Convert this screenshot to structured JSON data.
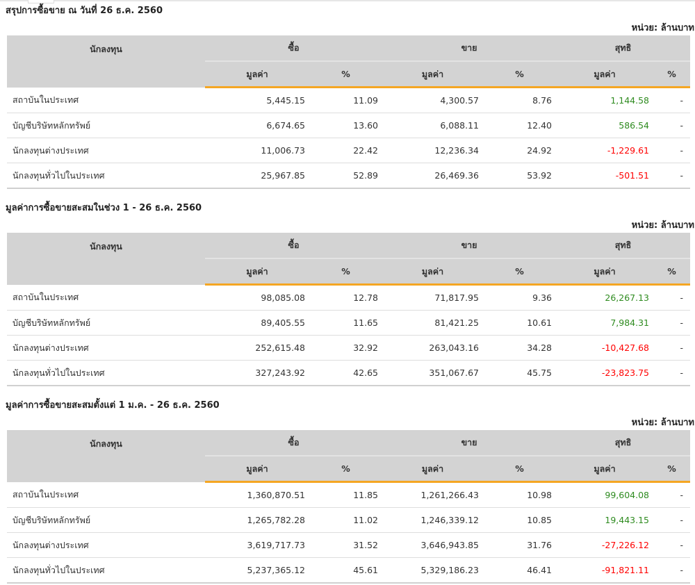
{
  "headers": {
    "investor": "นักลงทุน",
    "buy": "ซื้อ",
    "sell": "ขาย",
    "net": "สุทธิ",
    "value": "มูลค่า",
    "pct": "%"
  },
  "unit": "หน่วย: ล้านบาท",
  "colors": {
    "positive": "#2e8b1f",
    "negative": "#ff0000",
    "accent": "#f5a623"
  },
  "sections": [
    {
      "title": "สรุปการซื้อขาย ณ วันที่ 26 ธ.ค. 2560",
      "rows": [
        {
          "name": "สถาบันในประเทศ",
          "buy": "5,445.15",
          "buy_pct": "11.09",
          "sell": "4,300.57",
          "sell_pct": "8.76",
          "net": "1,144.58",
          "net_pct": "-"
        },
        {
          "name": "บัญชีบริษัทหลักทรัพย์",
          "buy": "6,674.65",
          "buy_pct": "13.60",
          "sell": "6,088.11",
          "sell_pct": "12.40",
          "net": "586.54",
          "net_pct": "-"
        },
        {
          "name": "นักลงทุนต่างประเทศ",
          "buy": "11,006.73",
          "buy_pct": "22.42",
          "sell": "12,236.34",
          "sell_pct": "24.92",
          "net": "-1,229.61",
          "net_pct": "-"
        },
        {
          "name": "นักลงทุนทั่วไปในประเทศ",
          "buy": "25,967.85",
          "buy_pct": "52.89",
          "sell": "26,469.36",
          "sell_pct": "53.92",
          "net": "-501.51",
          "net_pct": "-"
        }
      ]
    },
    {
      "title": "มูลค่าการซื้อขายสะสมในช่วง 1 - 26 ธ.ค. 2560",
      "rows": [
        {
          "name": "สถาบันในประเทศ",
          "buy": "98,085.08",
          "buy_pct": "12.78",
          "sell": "71,817.95",
          "sell_pct": "9.36",
          "net": "26,267.13",
          "net_pct": "-"
        },
        {
          "name": "บัญชีบริษัทหลักทรัพย์",
          "buy": "89,405.55",
          "buy_pct": "11.65",
          "sell": "81,421.25",
          "sell_pct": "10.61",
          "net": "7,984.31",
          "net_pct": "-"
        },
        {
          "name": "นักลงทุนต่างประเทศ",
          "buy": "252,615.48",
          "buy_pct": "32.92",
          "sell": "263,043.16",
          "sell_pct": "34.28",
          "net": "-10,427.68",
          "net_pct": "-"
        },
        {
          "name": "นักลงทุนทั่วไปในประเทศ",
          "buy": "327,243.92",
          "buy_pct": "42.65",
          "sell": "351,067.67",
          "sell_pct": "45.75",
          "net": "-23,823.75",
          "net_pct": "-"
        }
      ]
    },
    {
      "title": "มูลค่าการซื้อขายสะสมตั้งแต่ 1 ม.ค. - 26 ธ.ค. 2560",
      "rows": [
        {
          "name": "สถาบันในประเทศ",
          "buy": "1,360,870.51",
          "buy_pct": "11.85",
          "sell": "1,261,266.43",
          "sell_pct": "10.98",
          "net": "99,604.08",
          "net_pct": "-"
        },
        {
          "name": "บัญชีบริษัทหลักทรัพย์",
          "buy": "1,265,782.28",
          "buy_pct": "11.02",
          "sell": "1,246,339.12",
          "sell_pct": "10.85",
          "net": "19,443.15",
          "net_pct": "-"
        },
        {
          "name": "นักลงทุนต่างประเทศ",
          "buy": "3,619,717.73",
          "buy_pct": "31.52",
          "sell": "3,646,943.85",
          "sell_pct": "31.76",
          "net": "-27,226.12",
          "net_pct": "-"
        },
        {
          "name": "นักลงทุนทั่วไปในประเทศ",
          "buy": "5,237,365.12",
          "buy_pct": "45.61",
          "sell": "5,329,186.23",
          "sell_pct": "46.41",
          "net": "-91,821.11",
          "net_pct": "-"
        }
      ]
    }
  ]
}
